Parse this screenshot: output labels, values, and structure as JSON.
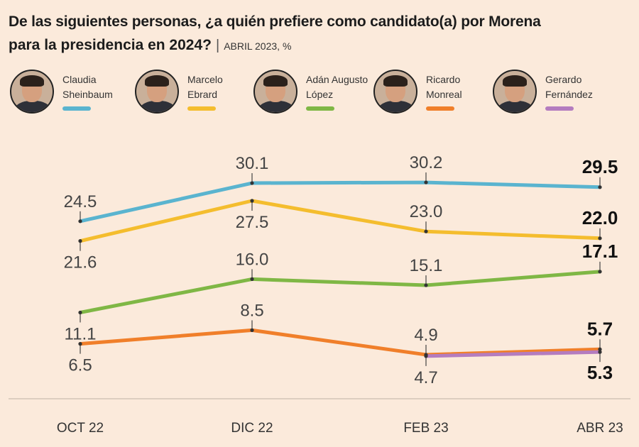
{
  "header": {
    "line1": "De las siguientes personas, ¿a quién prefiere como candidato(a) por Morena",
    "line2": "para la presidencia en 2024?",
    "subtitle": "ABRIL 2023, %"
  },
  "chart_data": {
    "type": "line",
    "title": "De las siguientes personas, ¿a quién prefiere como candidato(a) por Morena para la presidencia en 2024?",
    "subtitle": "ABRIL 2023, %",
    "categories": [
      "OCT 22",
      "DIC 22",
      "FEB 23",
      "ABR 23"
    ],
    "ylim": [
      0,
      35
    ],
    "grid": false,
    "legend": "top",
    "series": [
      {
        "name": "Claudia Sheinbaum",
        "name_lines": [
          "Claudia",
          "Sheinbaum"
        ],
        "color": "#5ab4cf",
        "values": [
          24.5,
          30.1,
          30.2,
          29.5
        ],
        "labels": [
          "24.5",
          "30.1",
          "30.2",
          "29.5"
        ]
      },
      {
        "name": "Marcelo Ebrard",
        "name_lines": [
          "Marcelo",
          "Ebrard"
        ],
        "color": "#f4bd2e",
        "values": [
          21.6,
          27.5,
          23.0,
          22.0
        ],
        "labels": [
          "21.6",
          "27.5",
          "23.0",
          "22.0"
        ]
      },
      {
        "name": "Adán Augusto López",
        "name_lines": [
          "Adán Augusto",
          "López"
        ],
        "color": "#7fb745",
        "values": [
          11.1,
          16.0,
          15.1,
          17.1
        ],
        "labels": [
          "11.1",
          "16.0",
          "15.1",
          "17.1"
        ]
      },
      {
        "name": "Ricardo Monreal",
        "name_lines": [
          "Ricardo",
          "Monreal"
        ],
        "color": "#f07f2a",
        "values": [
          6.5,
          8.5,
          4.9,
          5.7
        ],
        "labels": [
          "6.5",
          "8.5",
          "4.9",
          "5.7"
        ]
      },
      {
        "name": "Gerardo Fernández",
        "name_lines": [
          "Gerardo",
          "Fernández"
        ],
        "color": "#b47cbf",
        "values": [
          null,
          null,
          4.7,
          5.3
        ],
        "labels": [
          null,
          null,
          "4.7",
          "5.3"
        ]
      }
    ]
  }
}
